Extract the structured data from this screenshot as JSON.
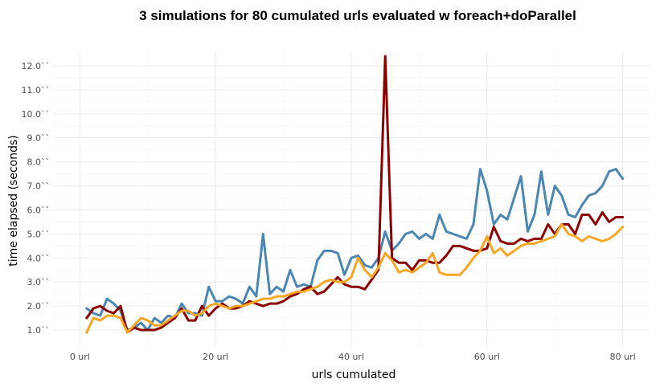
{
  "chart_data": {
    "type": "line",
    "title": "3 simulations for 80 cumulated urls evaluated w foreach+doParallel",
    "xlabel": "urls cumulated",
    "ylabel": "time elapsed (seconds)",
    "xlim": [
      0,
      80
    ],
    "ylim": [
      0.3,
      12.6
    ],
    "x_ticks": [
      0,
      20,
      40,
      60,
      80
    ],
    "x_tick_labels": [
      "0 url",
      "20 url",
      "40 url",
      "60 url",
      "80 url"
    ],
    "y_ticks": [
      1,
      2,
      3,
      4,
      5,
      6,
      7,
      8,
      9,
      10,
      11,
      12
    ],
    "y_tick_labels": [
      "1.0``",
      "2.0``",
      "3.0``",
      "4.0``",
      "5.0``",
      "6.0``",
      "7.0``",
      "8.0``",
      "9.0``",
      "10.0``",
      "11.0``",
      "12.0``"
    ],
    "grid": true,
    "legend": "none",
    "x": [
      1,
      2,
      3,
      4,
      5,
      6,
      7,
      8,
      9,
      10,
      11,
      12,
      13,
      14,
      15,
      16,
      17,
      18,
      19,
      20,
      21,
      22,
      23,
      24,
      25,
      26,
      27,
      28,
      29,
      30,
      31,
      32,
      33,
      34,
      35,
      36,
      37,
      38,
      39,
      40,
      41,
      42,
      43,
      44,
      45,
      46,
      47,
      48,
      49,
      50,
      51,
      52,
      53,
      54,
      55,
      56,
      57,
      58,
      59,
      60,
      61,
      62,
      63,
      64,
      65,
      66,
      67,
      68,
      69,
      70,
      71,
      72,
      73,
      74,
      75,
      76,
      77,
      78,
      79,
      80
    ],
    "series": [
      {
        "color": "#4a86b2",
        "values": [
          1.9,
          1.7,
          1.6,
          2.3,
          2.1,
          1.8,
          1.0,
          1.1,
          1.3,
          1.0,
          1.5,
          1.3,
          1.6,
          1.5,
          2.1,
          1.7,
          1.7,
          1.6,
          2.8,
          2.2,
          2.2,
          2.4,
          2.3,
          2.1,
          2.8,
          2.4,
          5.0,
          2.5,
          2.8,
          2.6,
          3.5,
          2.8,
          2.9,
          2.8,
          3.9,
          4.3,
          4.3,
          4.2,
          3.3,
          4.0,
          4.1,
          3.7,
          3.6,
          4.0,
          5.1,
          4.3,
          4.6,
          5.0,
          5.1,
          4.8,
          5.0,
          4.8,
          5.8,
          5.1,
          5.0,
          4.9,
          4.8,
          5.4,
          7.7,
          6.8,
          5.4,
          5.8,
          5.6,
          6.5,
          7.4,
          5.1,
          5.8,
          7.6,
          5.8,
          7.0,
          6.6,
          5.8,
          5.7,
          6.2,
          6.6,
          6.7,
          7.0,
          7.6,
          7.7,
          7.3
        ]
      },
      {
        "color": "#8b0000",
        "values": [
          1.5,
          1.9,
          2.0,
          1.8,
          1.7,
          2.0,
          0.9,
          1.1,
          1.0,
          1.0,
          1.0,
          1.1,
          1.3,
          1.5,
          1.9,
          1.4,
          1.4,
          2.0,
          1.6,
          1.9,
          2.1,
          1.9,
          1.9,
          2.0,
          2.2,
          2.1,
          2.0,
          2.1,
          2.1,
          2.2,
          2.4,
          2.5,
          2.7,
          2.8,
          2.5,
          2.6,
          2.9,
          3.2,
          2.9,
          2.8,
          2.8,
          2.7,
          3.1,
          3.5,
          12.4,
          4.0,
          3.8,
          3.8,
          3.5,
          3.9,
          3.9,
          3.8,
          3.8,
          4.1,
          4.5,
          4.5,
          4.4,
          4.3,
          4.3,
          4.4,
          5.3,
          4.7,
          4.6,
          4.6,
          4.8,
          4.7,
          4.8,
          4.8,
          5.4,
          5.0,
          5.4,
          5.4,
          5.0,
          5.8,
          5.8,
          5.4,
          5.9,
          5.5,
          5.7,
          5.7
        ]
      },
      {
        "color": "#f5a623",
        "values": [
          0.9,
          1.5,
          1.4,
          1.6,
          1.6,
          1.5,
          0.9,
          1.2,
          1.5,
          1.4,
          1.2,
          1.2,
          1.4,
          1.6,
          1.8,
          1.8,
          1.6,
          1.7,
          2.0,
          2.1,
          2.0,
          1.9,
          2.0,
          2.0,
          2.1,
          2.2,
          2.3,
          2.3,
          2.4,
          2.4,
          2.5,
          2.6,
          2.6,
          2.7,
          2.8,
          3.0,
          3.1,
          3.0,
          3.0,
          3.2,
          4.0,
          3.5,
          3.2,
          3.6,
          4.2,
          3.9,
          3.4,
          3.5,
          3.4,
          3.6,
          3.8,
          4.2,
          3.4,
          3.3,
          3.3,
          3.3,
          3.6,
          4.0,
          4.3,
          4.9,
          4.2,
          4.4,
          4.1,
          4.3,
          4.5,
          4.6,
          4.6,
          4.7,
          4.8,
          4.9,
          5.4,
          5.0,
          4.9,
          4.7,
          4.9,
          4.8,
          4.7,
          4.8,
          5.0,
          5.3
        ]
      }
    ]
  }
}
